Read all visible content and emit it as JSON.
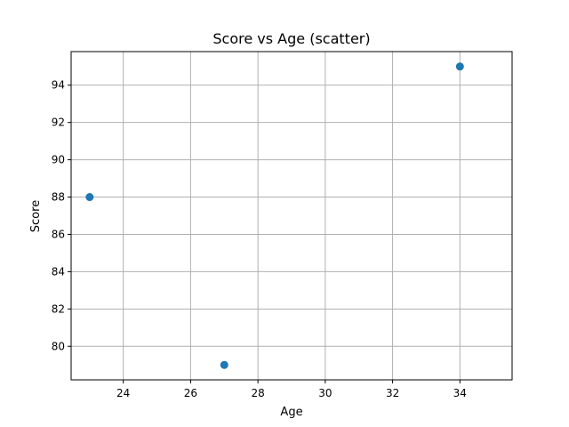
{
  "chart_data": {
    "type": "scatter",
    "title": "Score vs Age (scatter)",
    "xlabel": "Age",
    "ylabel": "Score",
    "xlim": [
      22.45,
      35.55
    ],
    "ylim": [
      78.2,
      95.8
    ],
    "xticks": [
      24,
      26,
      28,
      30,
      32,
      34
    ],
    "yticks": [
      80,
      82,
      84,
      86,
      88,
      90,
      92,
      94
    ],
    "grid": true,
    "points": [
      {
        "x": 23,
        "y": 88
      },
      {
        "x": 27,
        "y": 79
      },
      {
        "x": 34,
        "y": 95
      }
    ],
    "marker_color": "#1f77b4"
  }
}
